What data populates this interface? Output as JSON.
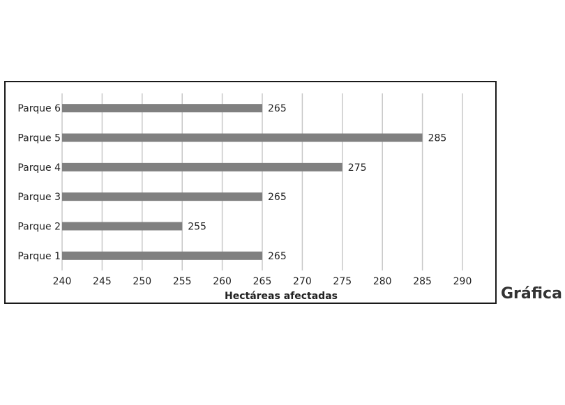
{
  "side_label": "Gráfica",
  "chart_data": {
    "type": "bar",
    "orientation": "horizontal",
    "categories": [
      "Parque 1",
      "Parque 2",
      "Parque 3",
      "Parque 4",
      "Parque 5",
      "Parque 6"
    ],
    "values": [
      265,
      255,
      265,
      275,
      285,
      265
    ],
    "data_labels": [
      "265",
      "255",
      "265",
      "275",
      "285",
      "265"
    ],
    "xlabel": "Hectáreas afectadas",
    "ylabel": "",
    "xlim": [
      240,
      290
    ],
    "xticks": [
      240,
      245,
      250,
      255,
      260,
      265,
      270,
      275,
      280,
      285,
      290
    ],
    "grid": "vertical",
    "legend": "none",
    "colors": {
      "bar": "#808080",
      "grid": "#c8c8c8",
      "frame": "#1a1a1a"
    }
  }
}
